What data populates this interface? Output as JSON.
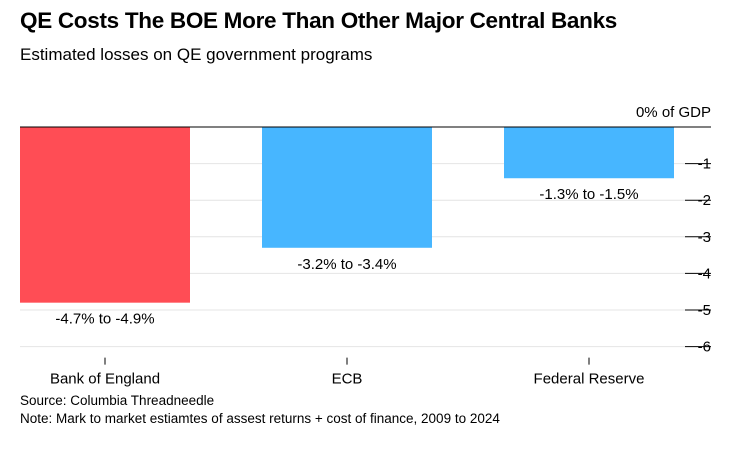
{
  "header": {
    "title": "QE Costs The BOE More Than Other Major Central Banks",
    "subtitle": "Estimated losses on QE government programs"
  },
  "chart_data": {
    "type": "bar",
    "categories": [
      "Bank of England",
      "ECB",
      "Federal Reserve"
    ],
    "values": [
      -4.8,
      -3.3,
      -1.4
    ],
    "bar_colors": [
      "#ff4d55",
      "#47b6ff",
      "#47b6ff"
    ],
    "data_labels": [
      "-4.7% to -4.9%",
      "-3.2% to -3.4%",
      "-1.3% to -1.5%"
    ],
    "y_unit_label": "0% of GDP",
    "y_ticks": [
      -1,
      -2,
      -3,
      -4,
      -5,
      -6
    ],
    "y_tick_labels": [
      "-1",
      "-2",
      "-3",
      "-4",
      "-5",
      "-6"
    ],
    "ylim": [
      -6.3,
      0
    ],
    "grid": true,
    "title": "QE Costs The BOE More Than Other Major Central Banks",
    "subtitle": "Estimated losses on QE government programs"
  },
  "footer": {
    "source": "Source: Columbia Threadneedle",
    "note": "Note: Mark to market estiamtes of assest returns + cost of finance, 2009 to 2024"
  }
}
